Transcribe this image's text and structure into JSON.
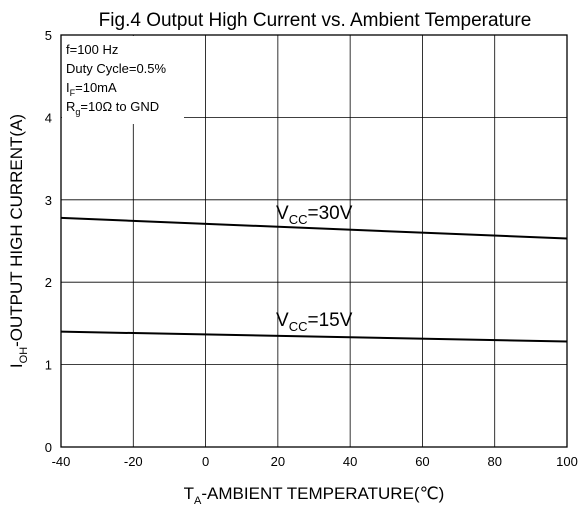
{
  "chart_data": {
    "type": "line",
    "title": "Fig.4 Output High Current vs. Ambient Temperature",
    "xlabel": {
      "main": "T",
      "sub": "A",
      "rest": "-AMBIENT TEMPERATURE(℃)"
    },
    "ylabel": {
      "main": "I",
      "sub": "OH",
      "rest": "-OUTPUT HIGH CURRENT(A)"
    },
    "xlim": [
      -40,
      100
    ],
    "ylim": [
      0,
      5
    ],
    "xticks": [
      "-40",
      "-20",
      "0",
      "20",
      "40",
      "60",
      "80",
      "100"
    ],
    "yticks": [
      "0",
      "1",
      "2",
      "3",
      "4",
      "5"
    ],
    "grid": true,
    "conditions": [
      {
        "main": "f=100 Hz",
        "sub": "",
        "rest": ""
      },
      {
        "main": "Duty Cycle=0.5%",
        "sub": "",
        "rest": ""
      },
      {
        "main": "I",
        "sub": "F",
        "rest": "=10mA"
      },
      {
        "main": "R",
        "sub": "g",
        "rest": "=10Ω to GND"
      }
    ],
    "series": [
      {
        "label_main": "V",
        "label_sub": "CC",
        "label_rest": "=30V",
        "x": [
          -40,
          100
        ],
        "y": [
          2.78,
          2.53
        ]
      },
      {
        "label_main": "V",
        "label_sub": "CC",
        "label_rest": "=15V",
        "x": [
          -40,
          100
        ],
        "y": [
          1.4,
          1.28
        ]
      }
    ],
    "colors": {
      "line": "#000000",
      "grid": "#000000",
      "background": "#ffffff"
    }
  }
}
